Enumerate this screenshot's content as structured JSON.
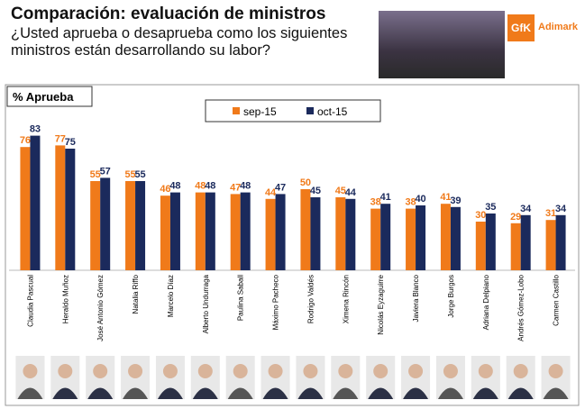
{
  "chart_data": {
    "type": "bar",
    "title": "Comparación: evaluación de ministros",
    "subtitle": "¿Usted aprueba o desaprueba como los siguientes ministros están desarrollando su labor?",
    "value_label": "% Aprueba",
    "brand": "GfK",
    "brand_name": "Adimark",
    "categories": [
      "Claudia Pascual",
      "Heraldo Muñoz",
      "José Antonio Gómez",
      "Natalia Riffo",
      "Marcelo Díaz",
      "Alberto Undurraga",
      "Paulina Saball",
      "Máximo Pacheco",
      "Rodrigo Valdés",
      "Ximena Rincón",
      "Nicolás Eyzaguirre",
      "Javiera Blanco",
      "Jorge Burgos",
      "Adriana Delpiano",
      "Andrés Gómez-Lobo",
      "Carmen Castillo"
    ],
    "series": [
      {
        "name": "sep-15",
        "color": "#f07a1a",
        "values": [
          76,
          77,
          55,
          55,
          46,
          48,
          47,
          44,
          50,
          45,
          38,
          38,
          41,
          30,
          29,
          31
        ]
      },
      {
        "name": "oct-15",
        "color": "#1b2a5c",
        "values": [
          83,
          75,
          57,
          55,
          48,
          48,
          48,
          47,
          45,
          44,
          41,
          40,
          39,
          35,
          34,
          34
        ]
      }
    ]
  }
}
